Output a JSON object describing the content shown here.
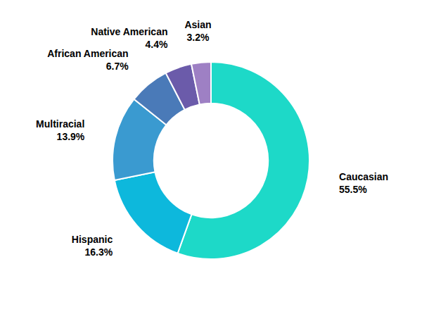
{
  "chart_data": {
    "type": "pie",
    "categories": [
      "Caucasian",
      "Hispanic",
      "Multiracial",
      "African American",
      "Native American",
      "Asian"
    ],
    "values": [
      55.5,
      16.3,
      13.9,
      6.7,
      4.4,
      3.2
    ],
    "value_labels": [
      "55.5%",
      "16.3%",
      "13.9%",
      "6.7%",
      "4.4%",
      "3.2%"
    ],
    "data_labels": true,
    "colors": [
      "#1dd9c8",
      "#0db8dc",
      "#3a9ad0",
      "#4a7ab8",
      "#6b5baa",
      "#9e80c4"
    ]
  }
}
